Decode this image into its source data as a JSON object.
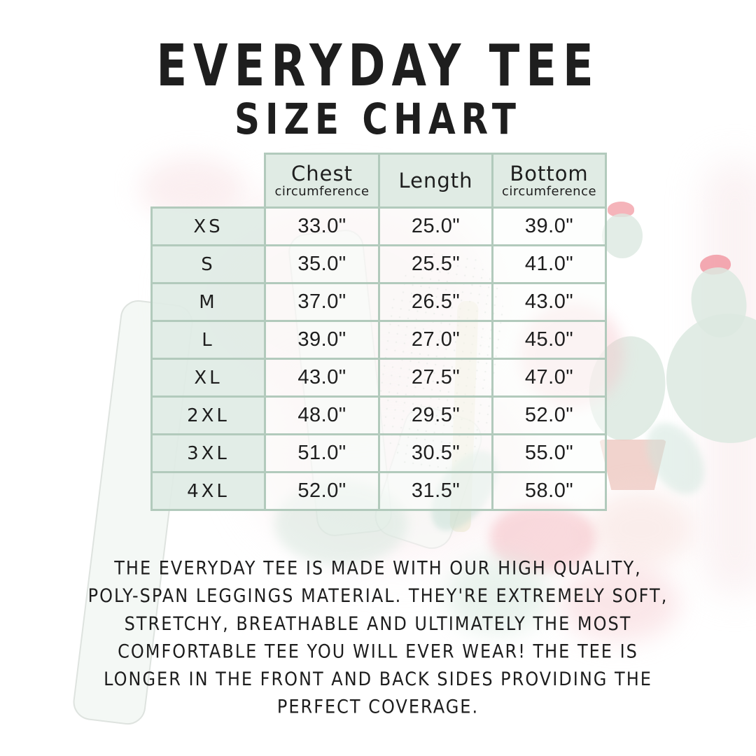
{
  "title": {
    "line1": "EVERYDAY TEE",
    "line2": "SIZE CHART"
  },
  "chart_data": {
    "type": "table",
    "title": "Everyday Tee Size Chart",
    "columns": [
      {
        "label": "Chest",
        "sub": "circumference"
      },
      {
        "label": "Length",
        "sub": ""
      },
      {
        "label": "Bottom",
        "sub": "circumference"
      }
    ],
    "rows": [
      {
        "size": "XS",
        "chest": "33.0\"",
        "length": "25.0\"",
        "bottom": "39.0\""
      },
      {
        "size": "S",
        "chest": "35.0\"",
        "length": "25.5\"",
        "bottom": "41.0\""
      },
      {
        "size": "M",
        "chest": "37.0\"",
        "length": "26.5\"",
        "bottom": "43.0\""
      },
      {
        "size": "L",
        "chest": "39.0\"",
        "length": "27.0\"",
        "bottom": "45.0\""
      },
      {
        "size": "XL",
        "chest": "43.0\"",
        "length": "27.5\"",
        "bottom": "47.0\""
      },
      {
        "size": "2XL",
        "chest": "48.0\"",
        "length": "29.5\"",
        "bottom": "52.0\""
      },
      {
        "size": "3XL",
        "chest": "51.0\"",
        "length": "30.5\"",
        "bottom": "55.0\""
      },
      {
        "size": "4XL",
        "chest": "52.0\"",
        "length": "31.5\"",
        "bottom": "58.0\""
      }
    ]
  },
  "description": {
    "lines": [
      "THE EVERYDAY TEE IS MADE WITH OUR HIGH QUALITY,",
      "POLY-SPAN LEGGINGS MATERIAL. THEY'RE EXTREMELY SOFT,",
      "STRETCHY, BREATHABLE AND ULTIMATELY THE MOST",
      "COMFORTABLE TEE YOU WILL EVER WEAR! THE TEE IS",
      "LONGER IN THE FRONT AND BACK SIDES PROVIDING THE",
      "PERFECT COVERAGE."
    ]
  },
  "colors": {
    "text": "#1e1e1e",
    "table_border": "#b2cabc",
    "header_bg": "#dfe9e3",
    "size_col_bg": "#e0ebe5",
    "cell_bg": "#fbfdfc",
    "watercolor_green": "#dce9e1",
    "watercolor_pink": "#f3a7ae",
    "watercolor_salmon": "#eec8c0",
    "watercolor_teal": "#c2ded4"
  }
}
